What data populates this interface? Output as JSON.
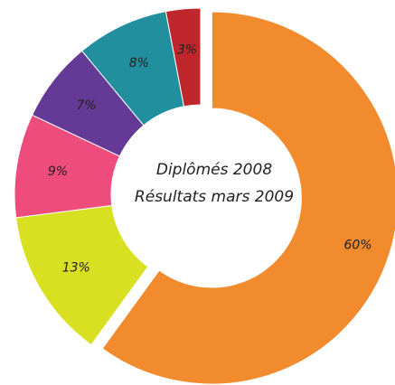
{
  "chart_data": {
    "type": "donut",
    "title": "Diplômés 2008",
    "subtitle": "Résultats mars 2009",
    "categories": [
      null,
      null,
      null,
      null,
      null,
      null
    ],
    "values": [
      60,
      13,
      9,
      7,
      8,
      3
    ],
    "value_labels": [
      "60%",
      "13%",
      "9%",
      "7%",
      "8%",
      "3%"
    ],
    "colors": [
      "#f28a2e",
      "#d9e021",
      "#ee4c7c",
      "#653a96",
      "#228f9e",
      "#c0272d"
    ]
  }
}
